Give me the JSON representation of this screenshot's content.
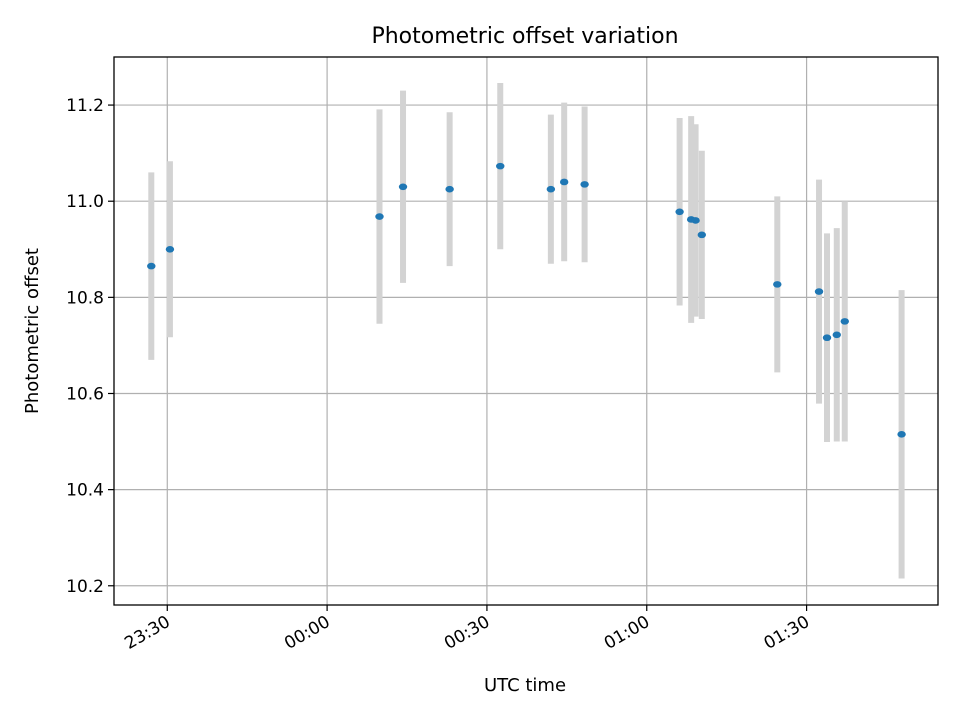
{
  "chart_data": {
    "type": "scatter",
    "title": "Photometric offset variation",
    "xlabel": "UTC time",
    "ylabel": "Photometric offset",
    "x_tick_labels": [
      "23:30",
      "00:00",
      "00:30",
      "01:00",
      "01:30"
    ],
    "y_tick_labels": [
      "10.2",
      "10.4",
      "10.6",
      "10.8",
      "11.0",
      "11.2"
    ],
    "y_ticks": [
      10.2,
      10.4,
      10.6,
      10.8,
      11.0,
      11.2
    ],
    "xlim": [
      "23:20:00",
      "01:54:40"
    ],
    "ylim": [
      10.16,
      11.3
    ],
    "grid": true,
    "marker_color": "#1f77b4",
    "errorbar_color": "#d3d3d3",
    "series": [
      {
        "points": [
          {
            "time": "23:27:00",
            "y": 10.865,
            "err": 0.195
          },
          {
            "time": "23:30:30",
            "y": 10.9,
            "err": 0.183
          },
          {
            "time": "00:09:50",
            "y": 10.968,
            "err": 0.223
          },
          {
            "time": "00:14:15",
            "y": 11.03,
            "err": 0.2
          },
          {
            "time": "00:23:00",
            "y": 11.025,
            "err": 0.16
          },
          {
            "time": "00:32:30",
            "y": 11.073,
            "err": 0.173
          },
          {
            "time": "00:42:00",
            "y": 11.025,
            "err": 0.155
          },
          {
            "time": "00:44:30",
            "y": 11.04,
            "err": 0.165
          },
          {
            "time": "00:48:20",
            "y": 11.035,
            "err": 0.162
          },
          {
            "time": "01:06:10",
            "y": 10.978,
            "err": 0.195
          },
          {
            "time": "01:08:20",
            "y": 10.962,
            "err": 0.215
          },
          {
            "time": "01:09:10",
            "y": 10.96,
            "err": 0.2
          },
          {
            "time": "01:10:20",
            "y": 10.93,
            "err": 0.175
          },
          {
            "time": "01:24:30",
            "y": 10.827,
            "err": 0.183
          },
          {
            "time": "01:32:20",
            "y": 10.812,
            "err": 0.233
          },
          {
            "time": "01:33:50",
            "y": 10.716,
            "err": 0.217
          },
          {
            "time": "01:35:40",
            "y": 10.722,
            "err": 0.222
          },
          {
            "time": "01:37:10",
            "y": 10.75,
            "err": 0.25
          },
          {
            "time": "01:47:50",
            "y": 10.515,
            "err": 0.3
          }
        ]
      }
    ]
  }
}
